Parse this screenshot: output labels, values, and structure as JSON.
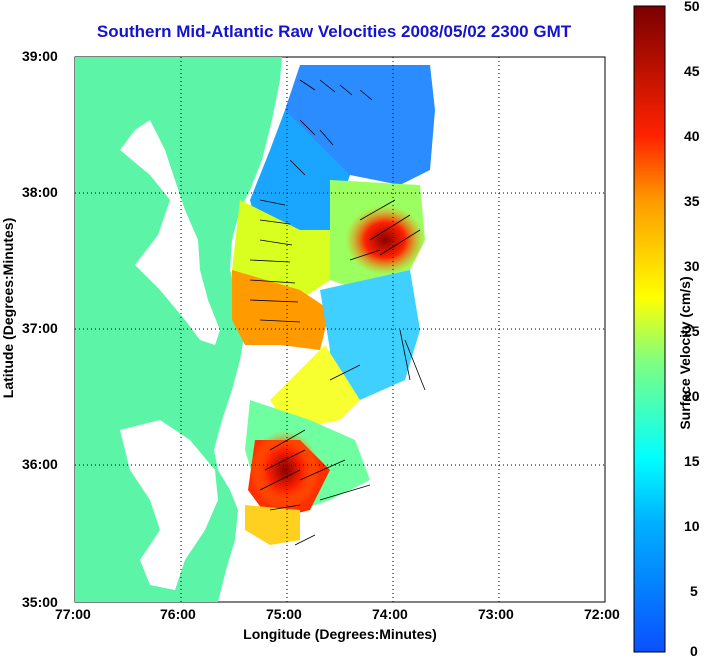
{
  "title": "Southern Mid-Atlantic Raw Velocities 2008/05/02 2300 GMT",
  "xlabel": "Longitude (Degrees:Minutes)",
  "ylabel": "Latitude (Degrees:Minutes)",
  "colorbar_label": "Surface Velocity (cm/s)",
  "xticks": [
    "77:00",
    "76:00",
    "75:00",
    "74:00",
    "73:00",
    "72:00"
  ],
  "yticks": [
    "39:00",
    "38:00",
    "37:00",
    "36:00",
    "35:00"
  ],
  "cbticks": [
    "50",
    "45",
    "40",
    "35",
    "30",
    "25",
    "20",
    "15",
    "10",
    "5",
    "0"
  ],
  "colors": {
    "land": "#5cf5a8",
    "title": "#1414d0",
    "grid": "#000000"
  }
}
